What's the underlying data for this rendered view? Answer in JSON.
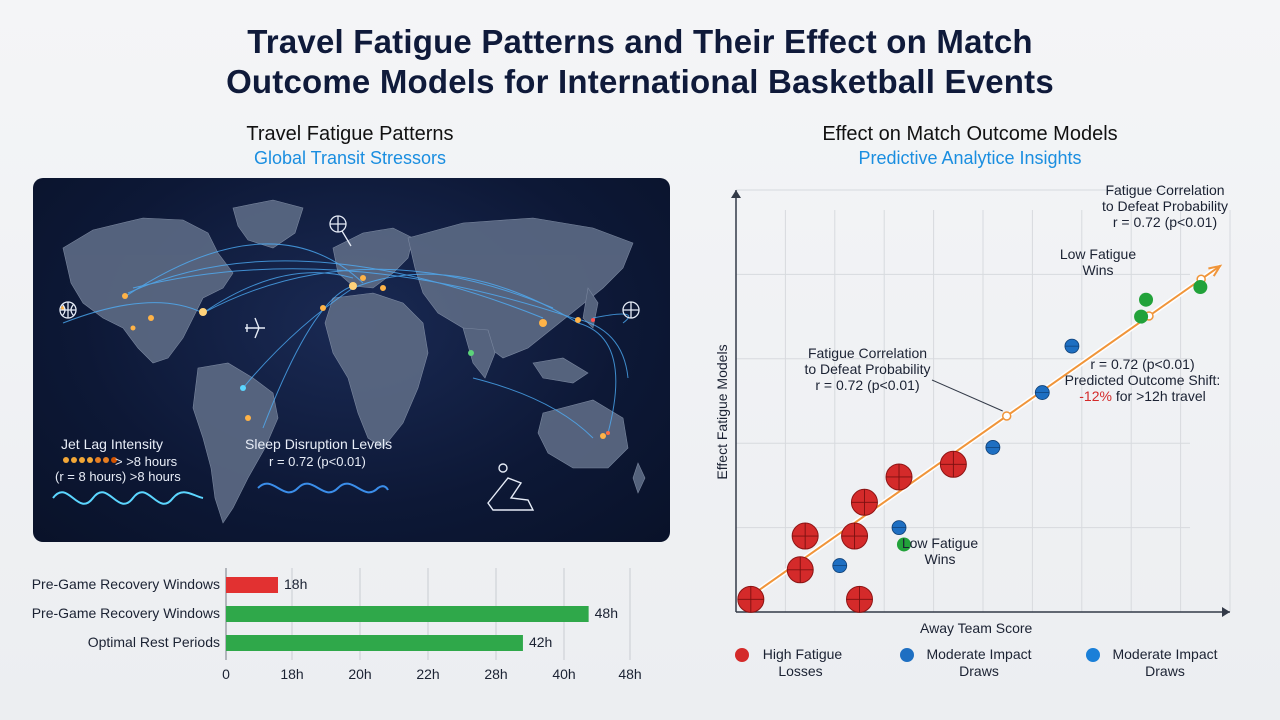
{
  "title_line1": "Travel Fatigue Patterns and Their Effect on Match",
  "title_line2": "Outcome Models for International Basketball Events",
  "left_panel": {
    "heading": "Travel Fatigue Patterns",
    "subheading": "Global Transit Stressors",
    "map": {
      "jet_lag_title": "Jet Lag Intensity",
      "jet_lag_line1": "> >8 hours",
      "jet_lag_line2": "(r = 8 hours) >8 hours",
      "sleep_title": "Sleep Disruption Levels",
      "sleep_line1": "r = 0.72 (p<0.01)",
      "icons": [
        "basketball-icon",
        "airplane-icon",
        "reclining-seat-icon"
      ]
    }
  },
  "right_panel": {
    "heading": "Effect on Match Outcome Models",
    "subheading": "Predictive Analytice Insights",
    "annotations": {
      "top_right_1": "Fatigue Correlation",
      "top_right_2": "to Defeat Probability",
      "top_right_3": "r = 0.72 (p<0.01)",
      "low_fatigue_top_1": "Low Fatigue",
      "low_fatigue_top_2": "Wins",
      "mid_1": "Fatigue Correlation",
      "mid_2": "to Defeat Probability",
      "mid_3": "r = 0.72 (p<0.01)",
      "shift_1": "r = 0.72 (p<0.01)",
      "shift_2": "Predicted Outcome Shift:",
      "shift_3_red": "-12%",
      "shift_3_rest": " for >12h travel",
      "low_fatigue_bottom_1": "Low Fatigue",
      "low_fatigue_bottom_2": "Wins"
    },
    "legend": {
      "item1_line1": "High Fatigue",
      "item1_line2": "Losses",
      "item2_line1": "Moderate Impact",
      "item2_line2": "Draws",
      "item3_line1": "Moderate Impact",
      "item3_line2": "Draws"
    }
  },
  "colors": {
    "red": "#d42a2a",
    "blue": "#1e6fc2",
    "green": "#22a23a",
    "trend": "#f0953a",
    "bar_red": "#e23131",
    "bar_green": "#2fa84a",
    "accent_blue": "#1a8ee0"
  },
  "chart_data": [
    {
      "type": "bar",
      "orientation": "horizontal",
      "categories": [
        "Pre-Game Recovery Windows",
        "Pre-Game Recovery Windows",
        "Optimal Rest Periods"
      ],
      "values": [
        18,
        48,
        42
      ],
      "value_labels": [
        "18h",
        "48h",
        "42h"
      ],
      "tick_labels": [
        "0",
        "18h",
        "20h",
        "22h",
        "28h",
        "40h",
        "48h"
      ],
      "xlim": [
        0,
        48
      ],
      "grid": true
    },
    {
      "type": "scatter",
      "xlabel": "Away Team Score",
      "ylabel": "Effect Fatigue Models",
      "xlim": [
        0,
        10
      ],
      "ylim": [
        0,
        10
      ],
      "grid": true,
      "trend_line": {
        "x": [
          0.2,
          9.8
        ],
        "y": [
          0.3,
          8.2
        ],
        "r": 0.72
      },
      "series": [
        {
          "name": "High Fatigue Losses",
          "color": "red",
          "points": [
            [
              0.3,
              0.3
            ],
            [
              1.3,
              1.0
            ],
            [
              1.4,
              1.8
            ],
            [
              2.4,
              1.8
            ],
            [
              2.5,
              0.3
            ],
            [
              2.6,
              2.6
            ],
            [
              3.3,
              3.2
            ],
            [
              4.4,
              3.5
            ]
          ]
        },
        {
          "name": "Moderate Impact Draws",
          "color": "blue",
          "points": [
            [
              2.1,
              1.1
            ],
            [
              3.3,
              2.0
            ],
            [
              5.2,
              3.9
            ],
            [
              6.8,
              6.3
            ],
            [
              6.2,
              5.2
            ]
          ]
        },
        {
          "name": "Low Fatigue Wins",
          "color": "green",
          "points": [
            [
              3.4,
              1.6
            ],
            [
              8.2,
              7.0
            ],
            [
              8.3,
              7.4
            ],
            [
              9.4,
              7.7
            ]
          ]
        }
      ]
    }
  ]
}
